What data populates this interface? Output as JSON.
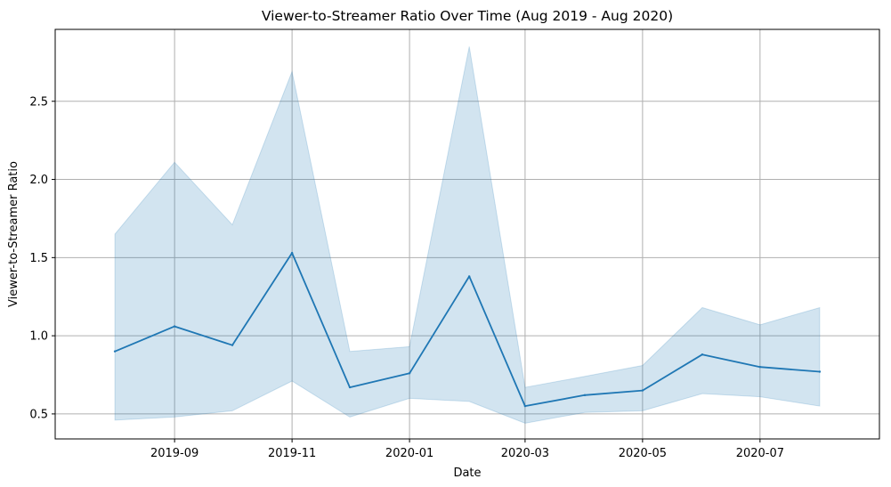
{
  "chart_data": {
    "type": "line",
    "title": "Viewer-to-Streamer Ratio Over Time (Aug 2019 - Aug 2020)",
    "xlabel": "Date",
    "ylabel": "Viewer-to-Streamer Ratio",
    "grid": true,
    "x_tick_labels": [
      "2019-09",
      "2019-11",
      "2020-01",
      "2020-03",
      "2020-05",
      "2020-07"
    ],
    "y_tick_labels": [
      "0.5",
      "1.0",
      "1.5",
      "2.0",
      "2.5"
    ],
    "y_ticks": [
      0.5,
      1.0,
      1.5,
      2.0,
      2.5
    ],
    "ylim": [
      0.34,
      2.96
    ],
    "xlim": [
      "2019-07-01",
      "2020-09-01"
    ],
    "series": [
      {
        "color": "#1f77b4",
        "band_color": "#1f77b4",
        "x": [
          "2019-08-01",
          "2019-09-01",
          "2019-10-01",
          "2019-11-01",
          "2019-12-01",
          "2020-01-01",
          "2020-02-01",
          "2020-03-01",
          "2020-04-01",
          "2020-05-01",
          "2020-06-01",
          "2020-07-01",
          "2020-08-01"
        ],
        "y": [
          0.9,
          1.06,
          0.94,
          1.53,
          0.67,
          0.76,
          1.38,
          0.55,
          0.62,
          0.65,
          0.88,
          0.8,
          0.77
        ],
        "lower": [
          0.46,
          0.48,
          0.52,
          0.71,
          0.48,
          0.6,
          0.58,
          0.44,
          0.51,
          0.52,
          0.63,
          0.61,
          0.55
        ],
        "upper": [
          1.65,
          2.11,
          1.71,
          2.69,
          0.9,
          0.93,
          2.85,
          0.67,
          0.74,
          0.81,
          1.18,
          1.07,
          1.18
        ]
      }
    ]
  }
}
